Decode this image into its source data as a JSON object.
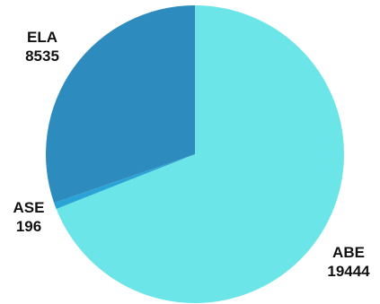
{
  "chart_data": {
    "type": "pie",
    "start_angle_deg": 0,
    "direction": "clockwise",
    "slices": [
      {
        "label": "ABE",
        "value": 19444,
        "color": "#6BE5E8"
      },
      {
        "label": "ASE",
        "value": 196,
        "color": "#2AA3D6"
      },
      {
        "label": "ELA",
        "value": 8535,
        "color": "#2E8BBD"
      }
    ]
  }
}
